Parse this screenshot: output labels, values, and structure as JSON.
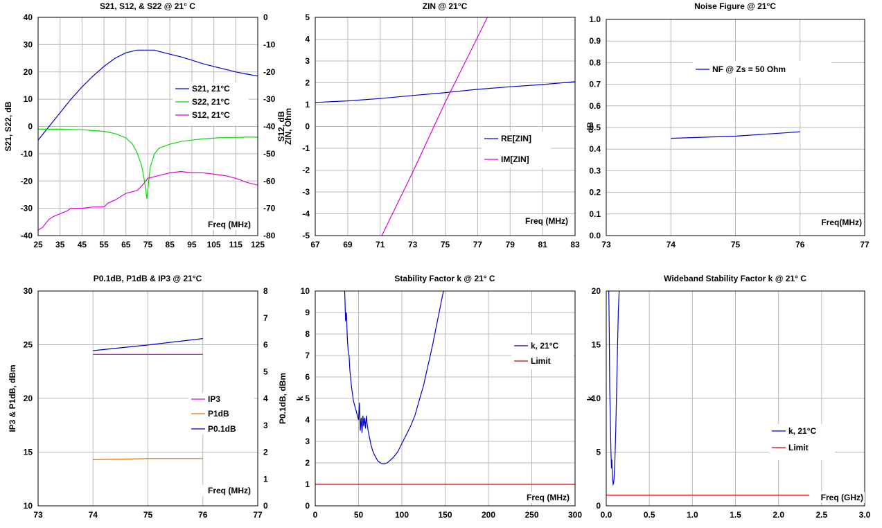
{
  "chart_data": [
    {
      "type": "line",
      "title": "S21, S12, & S22 @ 21° C",
      "xlabel": "",
      "ylabel": "S21, S22, dB",
      "y2label": "S12, dB",
      "plot_label": "Freq (MHz)",
      "xlim": [
        25,
        125
      ],
      "xticks": [
        25,
        35,
        45,
        55,
        65,
        75,
        85,
        95,
        105,
        115,
        125
      ],
      "ylim": [
        -40,
        40
      ],
      "yticks": [
        -40,
        -30,
        -20,
        -10,
        0,
        10,
        20,
        30,
        40
      ],
      "y2lim": [
        -80,
        0
      ],
      "y2ticks": [
        -80,
        -70,
        -60,
        -50,
        -40,
        -30,
        -20,
        -10,
        0
      ],
      "grid": true,
      "legend_position": "right",
      "series": [
        {
          "name": "S21, 21°C",
          "color": "#0000CC",
          "axis": "left",
          "x": [
            25,
            30,
            35,
            40,
            45,
            50,
            55,
            60,
            65,
            70,
            73,
            78,
            80,
            85,
            90,
            95,
            100,
            105,
            110,
            115,
            120,
            125
          ],
          "y": [
            -5,
            0,
            5,
            10,
            14.5,
            18.5,
            22,
            25,
            27,
            28,
            28,
            28,
            27.5,
            26.5,
            25.5,
            24.3,
            23,
            22,
            21,
            20,
            19.2,
            18.5
          ]
        },
        {
          "name": "S22, 21°C",
          "color": "#00DD00",
          "axis": "left",
          "x": [
            25,
            35,
            45,
            55,
            60,
            65,
            68,
            70,
            72,
            73,
            74,
            74.5,
            75,
            76,
            78,
            80,
            85,
            90,
            95,
            100,
            105,
            110,
            115,
            120,
            125
          ],
          "y": [
            -1,
            -1,
            -1.2,
            -1.8,
            -2.6,
            -4.2,
            -6.5,
            -9.5,
            -14,
            -18,
            -23,
            -26.5,
            -23,
            -15,
            -10,
            -8,
            -6.5,
            -5.5,
            -5,
            -4.5,
            -4.3,
            -4,
            -4,
            -3.9,
            -3.9
          ]
        },
        {
          "name": "S12, 21°C",
          "color": "#DD00DD",
          "axis": "right",
          "x": [
            25,
            27,
            30,
            32,
            35,
            38,
            40,
            45,
            50,
            55,
            57,
            60,
            62,
            65,
            70,
            72,
            75,
            80,
            85,
            90,
            95,
            100,
            105,
            110,
            115,
            120,
            125
          ],
          "y": [
            -78,
            -77,
            -74,
            -73,
            -72,
            -71,
            -70,
            -70,
            -69.5,
            -69.5,
            -68,
            -67,
            -66,
            -64.5,
            -63.5,
            -62,
            -59,
            -58,
            -57,
            -56.5,
            -57,
            -57,
            -57.5,
            -58,
            -59,
            -60.5,
            -61.5
          ]
        }
      ]
    },
    {
      "type": "line",
      "title": "ZIN @ 21°C",
      "ylabel": "ZIN, Ohm",
      "plot_label": "Freq (MHz)",
      "xlim": [
        67,
        83
      ],
      "xticks": [
        67,
        69,
        71,
        73,
        75,
        77,
        79,
        81,
        83
      ],
      "ylim": [
        -5,
        5
      ],
      "yticks": [
        -5,
        -4,
        -3,
        -2,
        -1,
        0,
        1,
        2,
        3,
        4,
        5
      ],
      "grid": true,
      "legend_position": "right",
      "series": [
        {
          "name": "RE[ZIN]",
          "color": "#0000CC",
          "x": [
            67,
            69,
            71,
            73,
            75,
            77,
            79,
            81,
            83
          ],
          "y": [
            1.1,
            1.17,
            1.28,
            1.42,
            1.55,
            1.7,
            1.82,
            1.92,
            2.05
          ]
        },
        {
          "name": "IM[ZIN]",
          "color": "#DD00DD",
          "x": [
            71.1,
            73,
            75,
            77,
            77.8
          ],
          "y": [
            -5,
            -2.1,
            1.1,
            4.1,
            5.3
          ]
        }
      ]
    },
    {
      "type": "line",
      "title": "Noise Figure @ 21°C",
      "ylabel": "dB",
      "plot_label": "Freq(MHz)",
      "xlim": [
        73,
        77
      ],
      "xticks": [
        73,
        74,
        75,
        76,
        77
      ],
      "ylim": [
        0,
        1
      ],
      "yticks": [
        0.0,
        0.1,
        0.2,
        0.3,
        0.4,
        0.5,
        0.6,
        0.7,
        0.8,
        0.9,
        1.0
      ],
      "ytick_labels": [
        "0.0",
        "0.1",
        "0.2",
        "0.3",
        "0.4",
        "0.5",
        "0.6",
        "0.7",
        "0.8",
        "0.9",
        "1.0"
      ],
      "grid": true,
      "legend_position": "top",
      "series": [
        {
          "name": "NF @ Zs = 50 Ohm",
          "color": "#0000CC",
          "x": [
            74,
            75,
            76
          ],
          "y": [
            0.45,
            0.46,
            0.48
          ]
        }
      ]
    },
    {
      "type": "line",
      "title": "P0.1dB, P1dB & IP3 @ 21°C",
      "ylabel": "IP3 & P1dB, dBm",
      "y2label": "P0.1dB, dBm",
      "plot_label": "Freq (MHz)",
      "xlim": [
        73,
        77
      ],
      "xticks": [
        73,
        74,
        75,
        76,
        77
      ],
      "ylim": [
        10,
        30
      ],
      "yticks": [
        10,
        15,
        20,
        25,
        30
      ],
      "y2lim": [
        0,
        8
      ],
      "y2ticks": [
        0,
        1,
        2,
        3,
        4,
        5,
        6,
        7,
        8
      ],
      "grid": true,
      "legend_position": "right",
      "series": [
        {
          "name": "IP3",
          "color": "#DD00DD",
          "axis": "left",
          "x": [
            74,
            75,
            76
          ],
          "y": [
            24.1,
            24.1,
            24.1
          ]
        },
        {
          "name": "P1dB",
          "color": "#E07000",
          "axis": "left",
          "x": [
            74,
            75,
            76
          ],
          "y": [
            14.3,
            14.4,
            14.4
          ]
        },
        {
          "name": "P0.1dB",
          "color": "#0000CC",
          "axis": "right",
          "x": [
            74,
            75,
            76
          ],
          "y": [
            5.78,
            5.99,
            6.23
          ]
        }
      ]
    },
    {
      "type": "line",
      "title": "Stability Factor k @ 21° C",
      "ylabel": "k",
      "plot_label": "Freq (MHz)",
      "xlim": [
        0,
        300
      ],
      "xticks": [
        0,
        50,
        100,
        150,
        200,
        250,
        300
      ],
      "ylim": [
        0,
        10
      ],
      "yticks": [
        0,
        1,
        2,
        3,
        4,
        5,
        6,
        7,
        8,
        9,
        10
      ],
      "grid": true,
      "legend_position": "right",
      "series": [
        {
          "name": "k, 21°C",
          "color": "#0000CC",
          "x": [
            34,
            35,
            36,
            37,
            38,
            39,
            40,
            42,
            44,
            46,
            48,
            50,
            51,
            52,
            53,
            54,
            55,
            56,
            57,
            58,
            59,
            60,
            61,
            62,
            64,
            66,
            68,
            70,
            72,
            75,
            78,
            80,
            83,
            86,
            90,
            95,
            100,
            105,
            110,
            115,
            120,
            125,
            130,
            135,
            140,
            143,
            146,
            148,
            149
          ],
          "y": [
            10,
            8.6,
            9.0,
            7.8,
            7.2,
            7.0,
            6.3,
            5.5,
            4.9,
            4.6,
            4.3,
            4.0,
            4.8,
            3.5,
            4.1,
            3.4,
            4.2,
            3.7,
            4.1,
            3.6,
            4.2,
            3.8,
            3.5,
            3.3,
            2.9,
            2.6,
            2.4,
            2.25,
            2.1,
            2.0,
            1.95,
            1.95,
            2.0,
            2.1,
            2.25,
            2.5,
            2.9,
            3.3,
            3.7,
            4.2,
            4.9,
            5.6,
            6.5,
            7.4,
            8.4,
            9.0,
            9.6,
            10.0,
            10.0
          ]
        },
        {
          "name": "Limit",
          "color": "#CC0000",
          "x": [
            0,
            300
          ],
          "y": [
            1,
            1
          ]
        }
      ]
    },
    {
      "type": "line",
      "title": "Wideband Stability Factor k @ 21° C",
      "ylabel": "k",
      "plot_label": "Freq (GHz)",
      "xlim": [
        0,
        3
      ],
      "xticks": [
        0,
        0.5,
        1.0,
        1.5,
        2.0,
        2.5,
        3.0
      ],
      "xtick_labels": [
        "0.0",
        "0.5",
        "1.0",
        "1.5",
        "2.0",
        "2.5",
        "3.0"
      ],
      "ylim": [
        0,
        20
      ],
      "yticks": [
        0,
        5,
        10,
        15,
        20
      ],
      "grid": true,
      "legend_position": "right",
      "series": [
        {
          "name": "k, 21°C",
          "color": "#0000CC",
          "x": [
            0.03,
            0.035,
            0.04,
            0.045,
            0.05,
            0.055,
            0.06,
            0.065,
            0.07,
            0.075,
            0.08,
            0.085,
            0.09,
            0.1,
            0.11,
            0.12,
            0.13,
            0.14,
            0.15
          ],
          "y": [
            20,
            16,
            11,
            9,
            7,
            5,
            3.5,
            4.3,
            3.0,
            2.5,
            2.0,
            2.1,
            2.5,
            4.0,
            7.0,
            10.5,
            14.5,
            18.0,
            20
          ]
        },
        {
          "name": "Limit",
          "color": "#CC0000",
          "x": [
            0,
            3
          ],
          "y": [
            1,
            1
          ]
        }
      ]
    }
  ]
}
